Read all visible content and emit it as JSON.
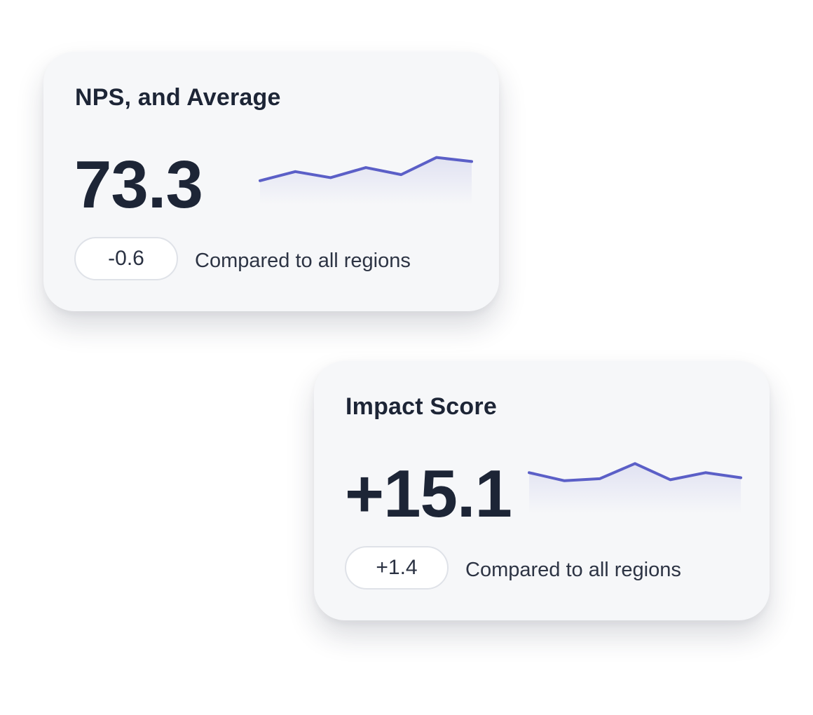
{
  "colors": {
    "line": "#5b5fc7",
    "text": "#1d2536",
    "card_bg": "#f6f7f9"
  },
  "cards": [
    {
      "title": "NPS, and Average",
      "value": "73.3",
      "delta": "-0.6",
      "compare_label": "Compared to all regions",
      "sparkline": [
        21,
        30,
        24,
        34,
        27,
        44,
        40
      ]
    },
    {
      "title": "Impact Score",
      "value": "+15.1",
      "delta": "+1.4",
      "compare_label": "Compared to all regions",
      "sparkline": [
        38,
        30,
        32,
        47,
        31,
        38,
        33
      ]
    }
  ]
}
